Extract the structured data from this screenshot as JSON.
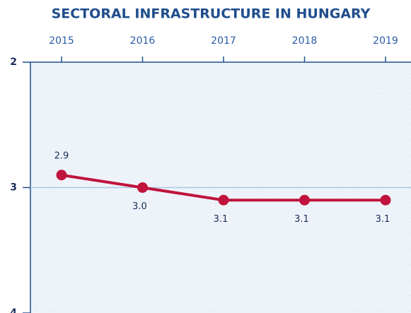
{
  "chart_data": {
    "type": "line",
    "title": "SECTORAL INFRASTRUCTURE IN HUNGARY",
    "categories": [
      "2015",
      "2016",
      "2017",
      "2018",
      "2019"
    ],
    "series": [
      {
        "name": null,
        "color": "#c0143c",
        "values": [
          2.9,
          3.0,
          3.1,
          3.1,
          3.1
        ],
        "value_labels": [
          "2.9",
          "3.0",
          "3.1",
          "3.1",
          "3.1"
        ]
      }
    ],
    "ylim": [
      2,
      4
    ],
    "yticks": [
      2,
      3,
      4
    ],
    "y_inverted": true,
    "grid": true
  }
}
